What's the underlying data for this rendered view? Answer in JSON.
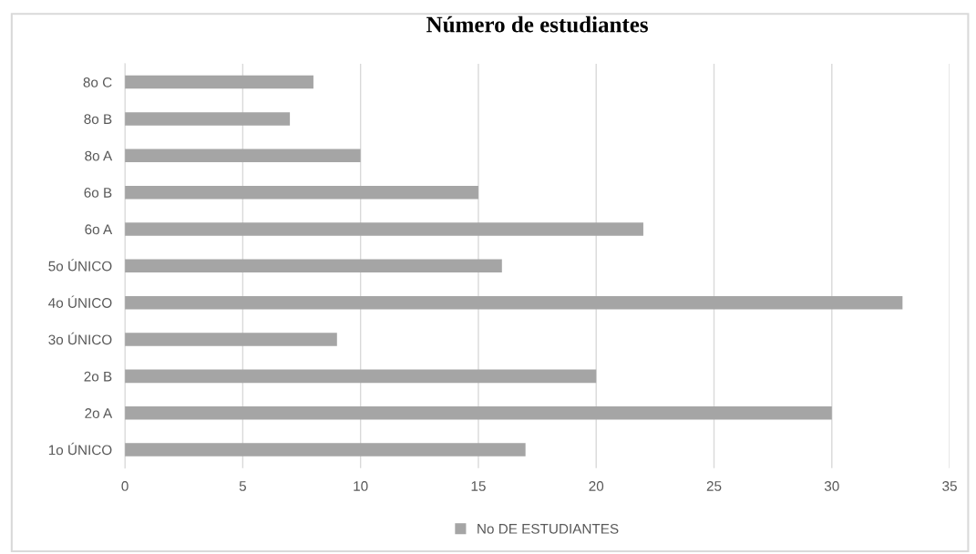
{
  "chart_data": {
    "type": "bar",
    "orientation": "horizontal",
    "title": "Número de estudiantes",
    "categories": [
      "8o C",
      "8o B",
      "8o A",
      "6o B",
      "6o A",
      "5o ÚNICO",
      "4o ÚNICO",
      "3o ÚNICO",
      "2o B",
      "2o A",
      "1o ÚNICO"
    ],
    "series": [
      {
        "name": "No DE ESTUDIANTES",
        "color": "#a5a5a5",
        "values": [
          8,
          7,
          10,
          15,
          22,
          16,
          33,
          9,
          20,
          30,
          17
        ]
      }
    ],
    "xlim": [
      0,
      35
    ],
    "xticks": [
      0,
      5,
      10,
      15,
      20,
      25,
      30,
      35
    ],
    "grid": "x",
    "legend": "bottom"
  }
}
